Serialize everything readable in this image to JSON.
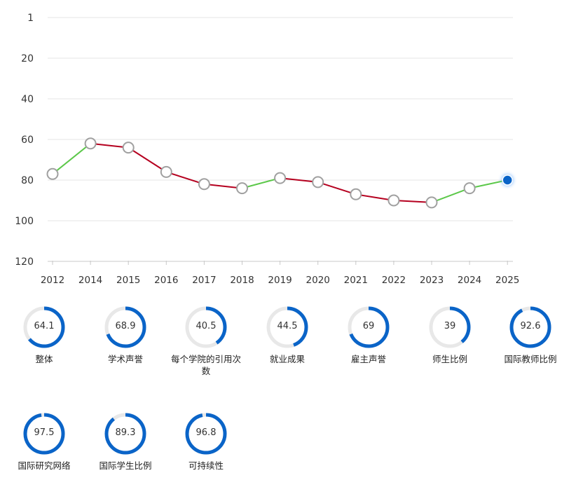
{
  "chart_data": {
    "type": "line",
    "categories": [
      "2012",
      "2014",
      "2015",
      "2016",
      "2017",
      "2018",
      "2019",
      "2020",
      "2021",
      "2022",
      "2023",
      "2024",
      "2025"
    ],
    "values": [
      77,
      62,
      64,
      76,
      82,
      84,
      79,
      81,
      87,
      90,
      91,
      84,
      80
    ],
    "yticks": [
      1,
      20,
      40,
      60,
      80,
      100,
      120
    ],
    "ylim": [
      1,
      120
    ],
    "y_inverted": true,
    "grid": true,
    "colors": {
      "improve": "#5cc84a",
      "decline": "#b5001f",
      "marker_fill": "#ffffff",
      "marker_stroke": "#a0a0a0",
      "current": "#0a64c8"
    }
  },
  "scores": [
    {
      "value": 64.1,
      "label": "整体"
    },
    {
      "value": 68.9,
      "label": "学术声誉"
    },
    {
      "value": 40.5,
      "label": "每个学院的引用次数"
    },
    {
      "value": 44.5,
      "label": "就业成果"
    },
    {
      "value": 69,
      "label": "雇主声誉"
    },
    {
      "value": 39,
      "label": "师生比例"
    },
    {
      "value": 92.6,
      "label": "国际教师比例"
    },
    {
      "value": 97.5,
      "label": "国际研究网络"
    },
    {
      "value": 89.3,
      "label": "国际学生比例"
    },
    {
      "value": 96.8,
      "label": "可持续性"
    }
  ],
  "donut_colors": {
    "arc": "#0a64c8",
    "track": "#e8e8e8"
  }
}
